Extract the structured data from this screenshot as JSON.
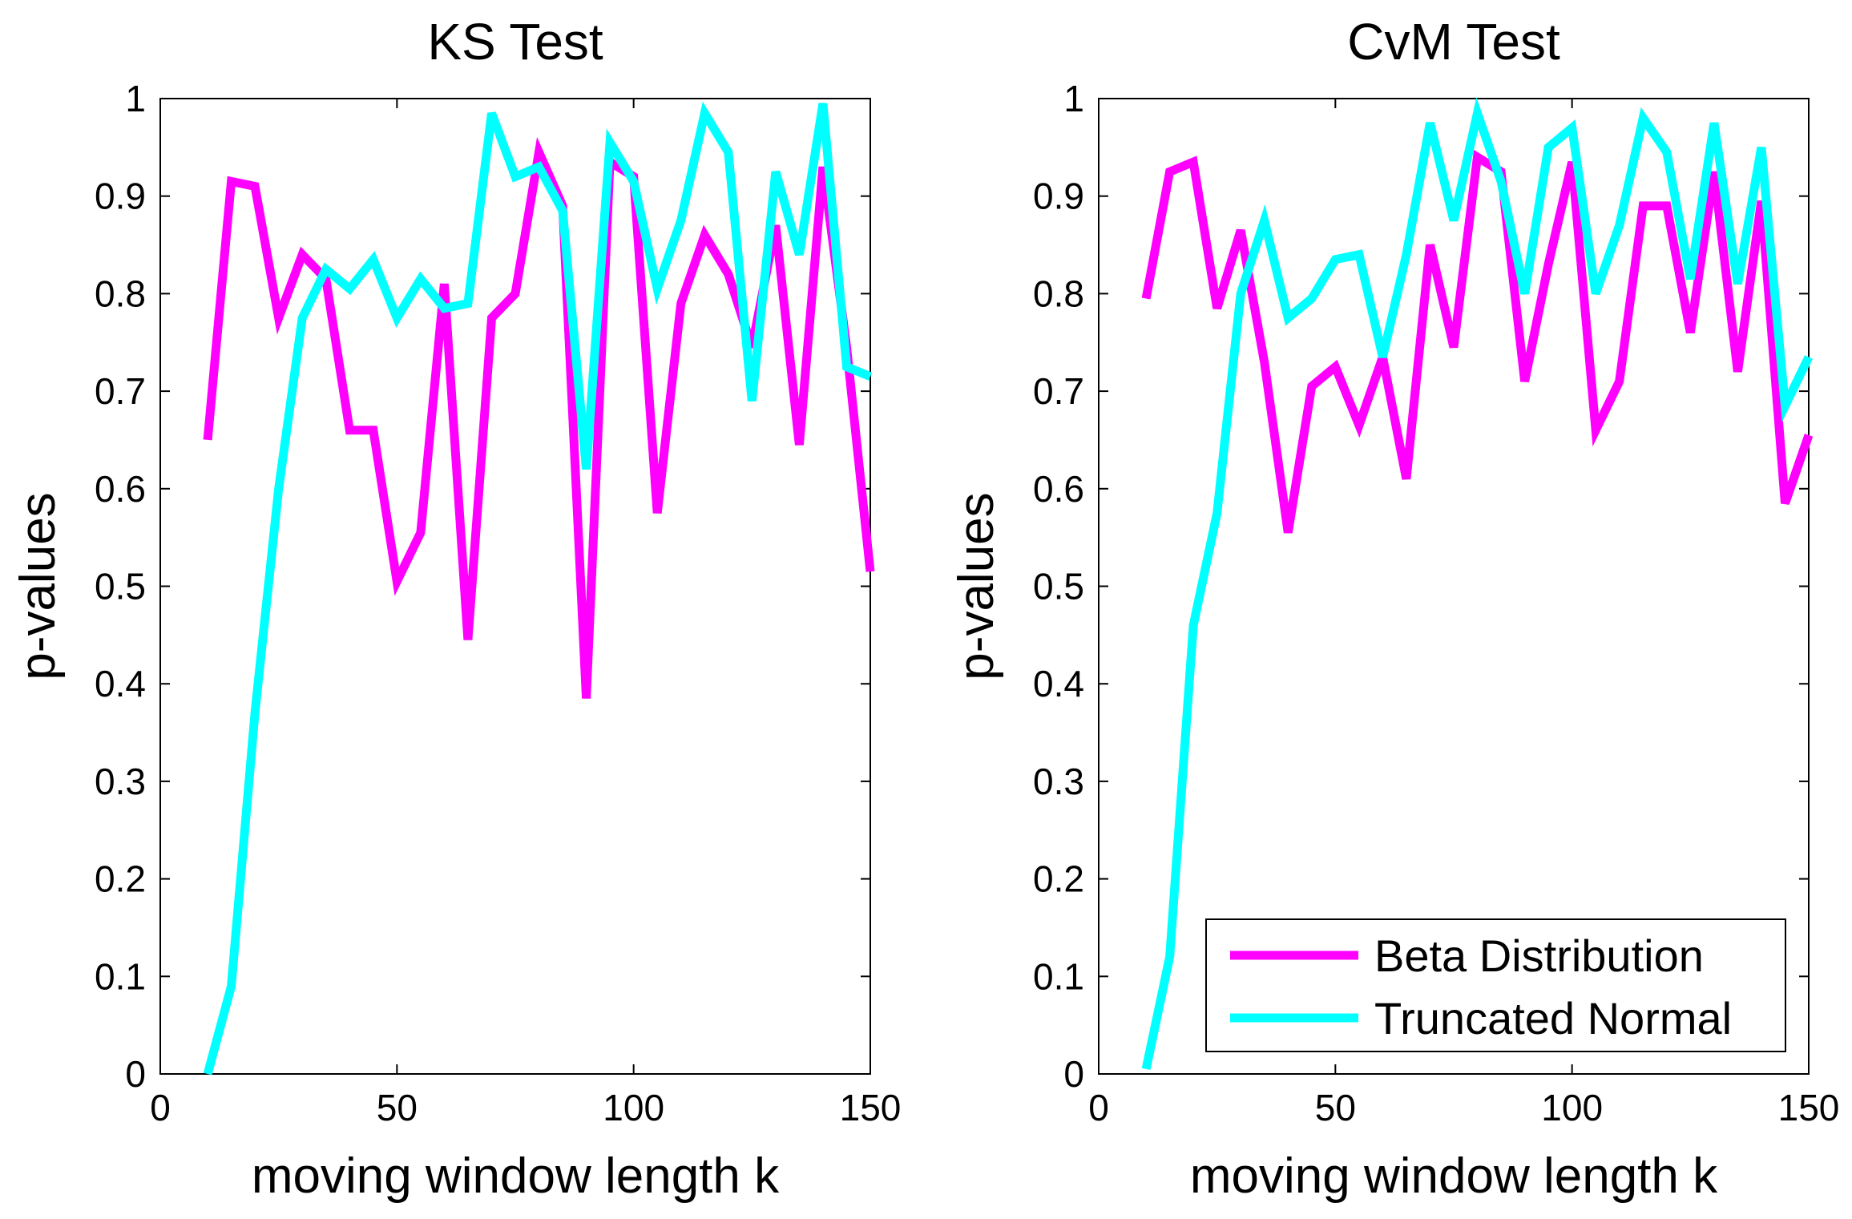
{
  "chart_data": [
    {
      "type": "line",
      "title": "KS Test",
      "xlabel": "moving window length k",
      "ylabel": "p-values",
      "xlim": [
        0,
        150
      ],
      "ylim": [
        0,
        1
      ],
      "xticks": [
        0,
        50,
        100,
        150
      ],
      "xtick_labels": [
        "0",
        "50",
        "100",
        "150"
      ],
      "yticks": [
        0,
        0.1,
        0.2,
        0.3,
        0.4,
        0.5,
        0.6,
        0.7,
        0.8,
        0.9,
        1
      ],
      "ytick_labels": [
        "0",
        "0.1",
        "0.2",
        "0.3",
        "0.4",
        "0.5",
        "0.6",
        "0.7",
        "0.8",
        "0.9",
        "1"
      ],
      "grid": false,
      "legend": null,
      "x": [
        10,
        15,
        20,
        25,
        30,
        35,
        40,
        45,
        50,
        55,
        60,
        65,
        70,
        75,
        80,
        85,
        90,
        95,
        100,
        105,
        110,
        115,
        120,
        125,
        130,
        135,
        140,
        145,
        150
      ],
      "series": [
        {
          "name": "Beta Distribution",
          "color": "#ff00ff",
          "values": [
            0.65,
            0.915,
            0.91,
            0.775,
            0.84,
            0.815,
            0.66,
            0.66,
            0.505,
            0.555,
            0.81,
            0.445,
            0.775,
            0.8,
            0.945,
            0.89,
            0.385,
            0.935,
            0.92,
            0.575,
            0.79,
            0.86,
            0.82,
            0.745,
            0.87,
            0.645,
            0.93,
            0.745,
            0.515
          ]
        },
        {
          "name": "Truncated Normal",
          "color": "#00ffff",
          "values": [
            0.0,
            0.09,
            0.37,
            0.6,
            0.775,
            0.825,
            0.805,
            0.835,
            0.775,
            0.815,
            0.785,
            0.79,
            0.985,
            0.92,
            0.93,
            0.885,
            0.62,
            0.955,
            0.915,
            0.805,
            0.875,
            0.985,
            0.945,
            0.69,
            0.925,
            0.84,
            0.995,
            0.725,
            0.715
          ]
        }
      ]
    },
    {
      "type": "line",
      "title": "CvM Test",
      "xlabel": "moving window length k",
      "ylabel": "p-values",
      "xlim": [
        0,
        150
      ],
      "ylim": [
        0,
        1
      ],
      "xticks": [
        0,
        50,
        100,
        150
      ],
      "xtick_labels": [
        "0",
        "50",
        "100",
        "150"
      ],
      "yticks": [
        0,
        0.1,
        0.2,
        0.3,
        0.4,
        0.5,
        0.6,
        0.7,
        0.8,
        0.9,
        1
      ],
      "ytick_labels": [
        "0",
        "0.1",
        "0.2",
        "0.3",
        "0.4",
        "0.5",
        "0.6",
        "0.7",
        "0.8",
        "0.9",
        "1"
      ],
      "grid": false,
      "legend": "bottom-right",
      "x": [
        10,
        15,
        20,
        25,
        30,
        35,
        40,
        45,
        50,
        55,
        60,
        65,
        70,
        75,
        80,
        85,
        90,
        95,
        100,
        105,
        110,
        115,
        120,
        125,
        130,
        135,
        140,
        145,
        150
      ],
      "series": [
        {
          "name": "Beta Distribution",
          "color": "#ff00ff",
          "values": [
            0.795,
            0.925,
            0.935,
            0.785,
            0.865,
            0.73,
            0.555,
            0.705,
            0.725,
            0.665,
            0.735,
            0.61,
            0.85,
            0.745,
            0.94,
            0.925,
            0.71,
            0.83,
            0.935,
            0.66,
            0.71,
            0.89,
            0.89,
            0.76,
            0.925,
            0.72,
            0.895,
            0.585,
            0.655
          ]
        },
        {
          "name": "Truncated Normal",
          "color": "#00ffff",
          "values": [
            0.005,
            0.12,
            0.46,
            0.575,
            0.8,
            0.875,
            0.775,
            0.795,
            0.835,
            0.84,
            0.735,
            0.84,
            0.975,
            0.875,
            0.985,
            0.915,
            0.8,
            0.95,
            0.97,
            0.8,
            0.87,
            0.98,
            0.945,
            0.815,
            0.975,
            0.81,
            0.95,
            0.685,
            0.735
          ]
        }
      ]
    }
  ]
}
